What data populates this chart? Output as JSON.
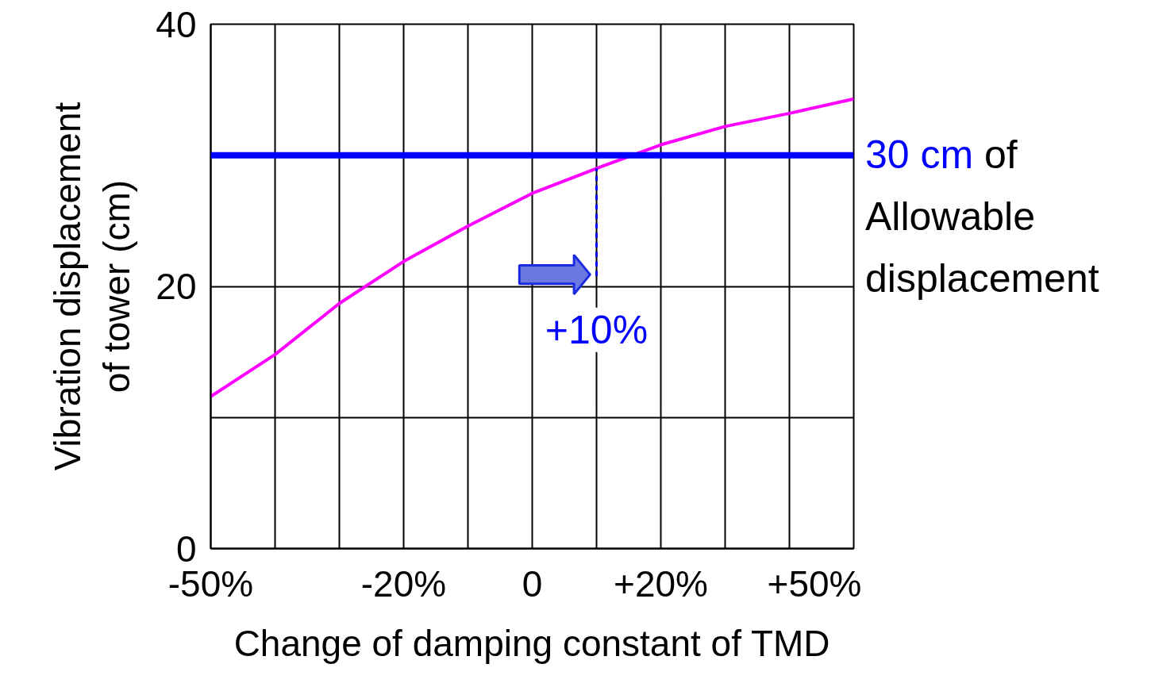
{
  "chart_data": {
    "type": "line",
    "xlabel": "Change of damping constant of TMD",
    "ylabel": "Vibration displacement\nof tower (cm)",
    "xlim": [
      -50,
      50
    ],
    "ylim": [
      0,
      40
    ],
    "xticks": [
      {
        "value": -50,
        "label": "-50%"
      },
      {
        "value": -40,
        "label": null
      },
      {
        "value": -30,
        "label": null
      },
      {
        "value": -20,
        "label": "-20%"
      },
      {
        "value": -10,
        "label": null
      },
      0,
      {
        "value": 10,
        "label": null
      },
      {
        "value": 20,
        "label": "+20%"
      },
      {
        "value": 30,
        "label": null
      },
      {
        "value": 40,
        "label": null
      },
      {
        "value": 50,
        "label": "+50%"
      }
    ],
    "yticks": [
      0,
      {
        "value": 10,
        "label": null
      },
      20,
      {
        "value": 30,
        "label": null
      },
      40
    ],
    "grid": true,
    "series": [
      {
        "color": "#ff00ff",
        "x": [
          -50,
          -40,
          -30,
          -20,
          -10,
          0,
          10,
          20,
          30,
          40,
          50
        ],
        "values": [
          11.6,
          14.8,
          18.7,
          21.9,
          24.6,
          27.1,
          29.0,
          30.8,
          32.2,
          33.2,
          34.3
        ]
      },
      {
        "color": "#0000ff",
        "line_style": "dashed",
        "x": [
          10,
          10
        ],
        "values": [
          20.8,
          29.0
        ]
      }
    ],
    "ref_lines": [
      {
        "axis": "y",
        "value": 30,
        "label": "30 cm of Allowable displacement",
        "color": "#0000ff"
      }
    ],
    "annotations": [
      {
        "text": "+10%",
        "x": 10,
        "y": 20.8
      }
    ]
  }
}
